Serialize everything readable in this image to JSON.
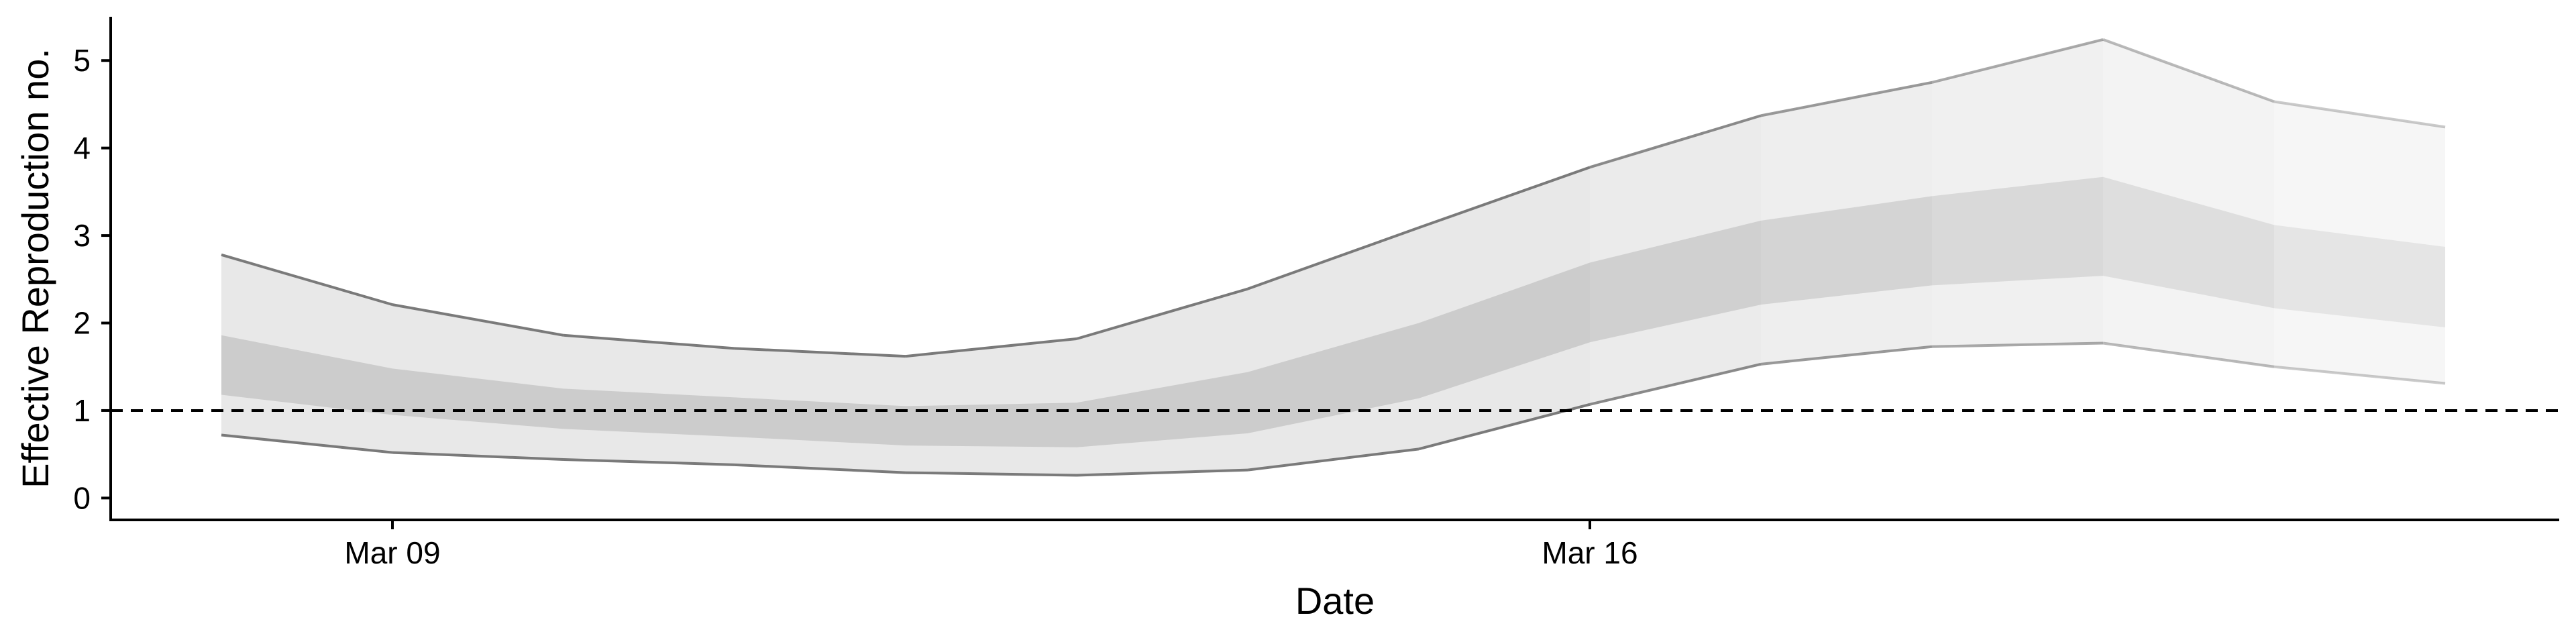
{
  "chart_data": {
    "type": "area",
    "title": "",
    "xlabel": "Date",
    "ylabel": "Effective Reproduction no.",
    "x_ticks": [
      "Mar 09",
      "Mar 16"
    ],
    "y_ticks": [
      0,
      1,
      2,
      3,
      4,
      5
    ],
    "ylim": [
      -0.25,
      5.5
    ],
    "xlim": [
      "2020-03-07",
      "2020-03-21"
    ],
    "reference_line": {
      "y": 1,
      "style": "dashed"
    },
    "grid": false,
    "legend": "none",
    "x": [
      "2020-03-08",
      "2020-03-09",
      "2020-03-10",
      "2020-03-11",
      "2020-03-12",
      "2020-03-13",
      "2020-03-14",
      "2020-03-15",
      "2020-03-16",
      "2020-03-17",
      "2020-03-18",
      "2020-03-19",
      "2020-03-20",
      "2020-03-21"
    ],
    "series": [
      {
        "values_lower_90": [
          0.72,
          0.52,
          0.44,
          0.38,
          0.29,
          0.26,
          0.32,
          0.56,
          1.07,
          1.53,
          1.73,
          1.77,
          1.5,
          1.31
        ],
        "values_upper_90": [
          2.78,
          2.21,
          1.86,
          1.71,
          1.62,
          1.82,
          2.39,
          3.09,
          3.78,
          4.37,
          4.75,
          5.24,
          4.53,
          4.24
        ],
        "values_lower_50": [
          1.18,
          0.95,
          0.79,
          0.7,
          0.6,
          0.58,
          0.74,
          1.14,
          1.78,
          2.21,
          2.43,
          2.54,
          2.17,
          1.95
        ],
        "values_upper_50": [
          1.86,
          1.48,
          1.25,
          1.15,
          1.05,
          1.09,
          1.44,
          2.0,
          2.69,
          3.17,
          3.45,
          3.67,
          3.12,
          2.87
        ]
      }
    ],
    "colors": {
      "band_90": "#e8e8e8",
      "band_50": "#cccccc",
      "edge_line": "#7a7a7a",
      "reference": "#000000",
      "axis": "#000000"
    }
  }
}
